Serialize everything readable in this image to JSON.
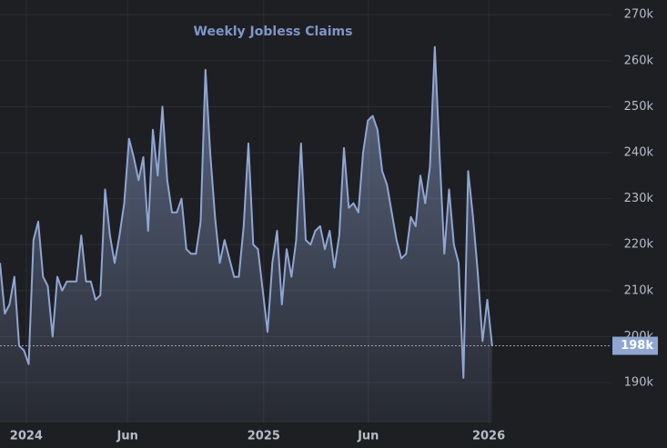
{
  "chart_data": {
    "type": "area",
    "title": "Weekly Jobless Claims",
    "series": [
      {
        "name": "Weekly Jobless Claims",
        "color": "#8fa6d3",
        "values": [
          216000,
          205000,
          207000,
          213000,
          198000,
          197000,
          194000,
          221000,
          225000,
          213000,
          211000,
          200000,
          213000,
          210000,
          212000,
          212000,
          212000,
          222000,
          212000,
          212000,
          208000,
          209000,
          232000,
          222000,
          216000,
          222000,
          229000,
          243000,
          239000,
          234000,
          239000,
          223000,
          245000,
          235000,
          250000,
          234000,
          227000,
          227000,
          230000,
          219000,
          218000,
          218000,
          225000,
          258000,
          240000,
          226000,
          216000,
          221000,
          217000,
          213000,
          213000,
          224000,
          242000,
          220000,
          219000,
          210000,
          201000,
          216000,
          223000,
          207000,
          219000,
          213000,
          221000,
          242000,
          221000,
          220000,
          223000,
          224000,
          219000,
          223000,
          215000,
          222000,
          241000,
          228000,
          229000,
          227000,
          240000,
          247000,
          248000,
          245000,
          236000,
          233000,
          227000,
          221000,
          217000,
          218000,
          226000,
          224000,
          235000,
          229000,
          237000,
          263000,
          240000,
          218000,
          232000,
          220000,
          216000,
          191000,
          236000,
          226000,
          214000,
          199000,
          208000,
          198000
        ]
      }
    ],
    "current_value": {
      "value": 198000,
      "label": "198k"
    },
    "xlim": [
      0,
      128
    ],
    "xticks": [
      {
        "value": 5.5,
        "label": "2024"
      },
      {
        "value": 26.7,
        "label": "Jun"
      },
      {
        "value": 55.2,
        "label": "2025"
      },
      {
        "value": 77.1,
        "label": "Jun"
      },
      {
        "value": 102.3,
        "label": "2026"
      }
    ],
    "ylim": [
      181300,
      273200
    ],
    "yticks": [
      {
        "value": 190000,
        "label": "190k"
      },
      {
        "value": 200000,
        "label": "200k"
      },
      {
        "value": 210000,
        "label": "210k"
      },
      {
        "value": 220000,
        "label": "220k"
      },
      {
        "value": 230000,
        "label": "230k"
      },
      {
        "value": 240000,
        "label": "240k"
      },
      {
        "value": 250000,
        "label": "250k"
      },
      {
        "value": 260000,
        "label": "260k"
      },
      {
        "value": 270000,
        "label": "270k"
      }
    ],
    "grid": true
  }
}
